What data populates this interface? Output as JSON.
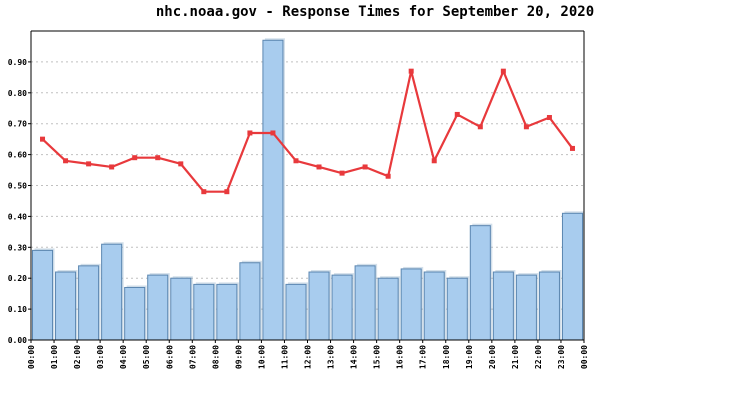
{
  "chart_data": {
    "type": "bar",
    "title": "nhc.noaa.gov - Response Times for September 20, 2020",
    "xlabel": "",
    "ylabel": "",
    "ylim": [
      0,
      1.0
    ],
    "grid": true,
    "y_ticks": [
      "0.00",
      "0.10",
      "0.20",
      "0.30",
      "0.40",
      "0.50",
      "0.60",
      "0.70",
      "0.80",
      "0.90"
    ],
    "x_ticks": [
      "00:00",
      "01:00",
      "02:00",
      "03:00",
      "04:00",
      "05:00",
      "06:00",
      "07:00",
      "08:00",
      "09:00",
      "10:00",
      "11:00",
      "12:00",
      "13:00",
      "14:00",
      "15:00",
      "16:00",
      "17:00",
      "18:00",
      "19:00",
      "20:00",
      "21:00",
      "22:00",
      "23:00",
      "00:00"
    ],
    "series": [
      {
        "type": "bar",
        "color": "#a8ccee",
        "edge_color": "#5b86b0",
        "values": [
          0.29,
          0.22,
          0.24,
          0.31,
          0.17,
          0.21,
          0.2,
          0.18,
          0.18,
          0.25,
          0.97,
          0.18,
          0.22,
          0.21,
          0.24,
          0.2,
          0.23,
          0.22,
          0.2,
          0.37,
          0.22,
          0.21,
          0.22,
          0.41
        ]
      },
      {
        "type": "line",
        "color": "#e8393c",
        "values": [
          0.65,
          0.58,
          0.57,
          0.56,
          0.59,
          0.59,
          0.57,
          0.48,
          0.48,
          0.67,
          0.67,
          0.58,
          0.56,
          0.54,
          0.56,
          0.53,
          0.87,
          0.58,
          0.73,
          0.69,
          0.87,
          0.69,
          0.72,
          0.62
        ]
      }
    ]
  }
}
